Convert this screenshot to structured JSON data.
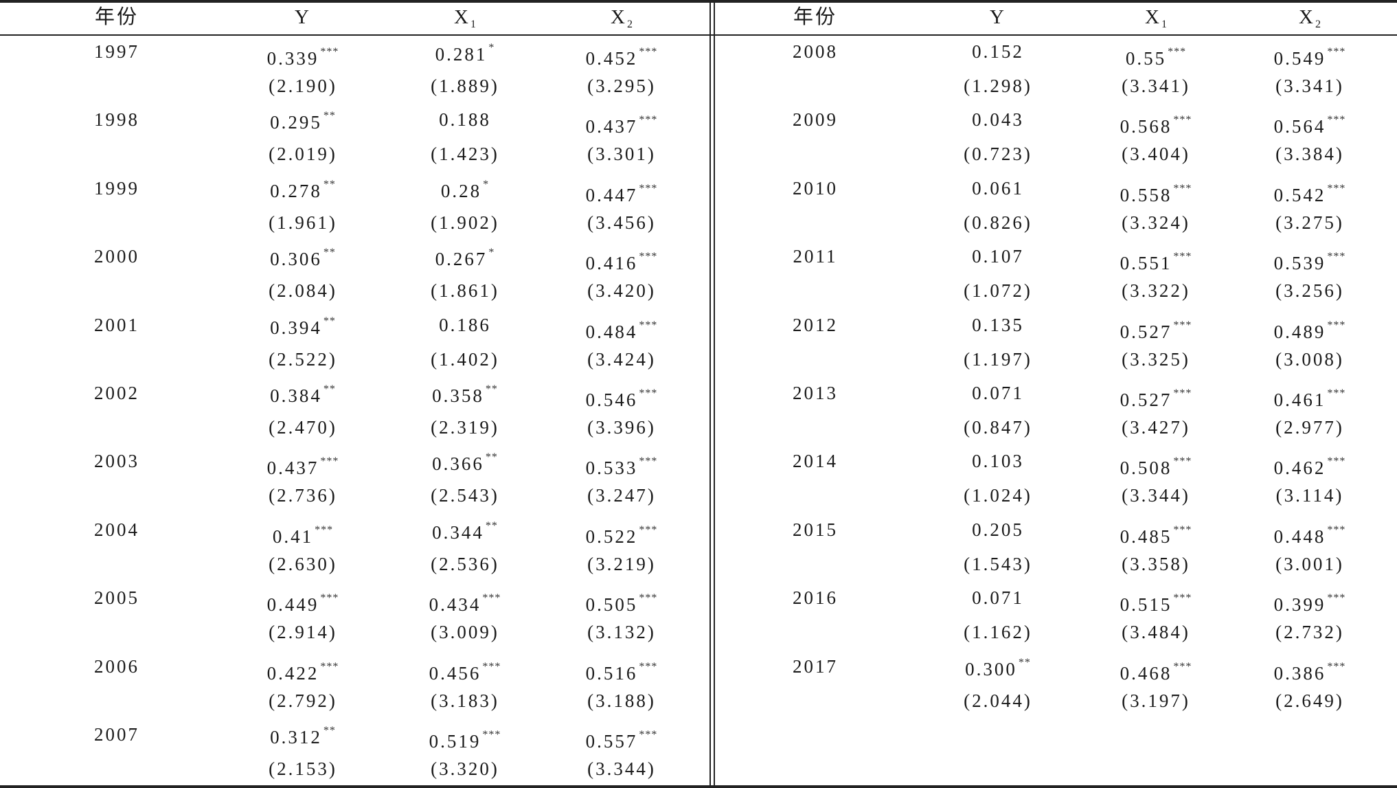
{
  "headers": [
    {
      "label": "年份",
      "sub": ""
    },
    {
      "label": "Y",
      "sub": ""
    },
    {
      "label": "X",
      "sub": "1"
    },
    {
      "label": "X",
      "sub": "2"
    }
  ],
  "left_rows": [
    {
      "year": "1997",
      "Y": {
        "coef": "0.339",
        "stars": "***",
        "t": "(2.190)"
      },
      "X1": {
        "coef": "0.281",
        "stars": "*",
        "t": "(1.889)"
      },
      "X2": {
        "coef": "0.452",
        "stars": "***",
        "t": "(3.295)"
      }
    },
    {
      "year": "1998",
      "Y": {
        "coef": "0.295",
        "stars": "**",
        "t": "(2.019)"
      },
      "X1": {
        "coef": "0.188",
        "stars": "",
        "t": "(1.423)"
      },
      "X2": {
        "coef": "0.437",
        "stars": "***",
        "t": "(3.301)"
      }
    },
    {
      "year": "1999",
      "Y": {
        "coef": "0.278",
        "stars": "**",
        "t": "(1.961)"
      },
      "X1": {
        "coef": "0.28",
        "stars": "*",
        "t": "(1.902)"
      },
      "X2": {
        "coef": "0.447",
        "stars": "***",
        "t": "(3.456)"
      }
    },
    {
      "year": "2000",
      "Y": {
        "coef": "0.306",
        "stars": "**",
        "t": "(2.084)"
      },
      "X1": {
        "coef": "0.267",
        "stars": "*",
        "t": "(1.861)"
      },
      "X2": {
        "coef": "0.416",
        "stars": "***",
        "t": "(3.420)"
      }
    },
    {
      "year": "2001",
      "Y": {
        "coef": "0.394",
        "stars": "**",
        "t": "(2.522)"
      },
      "X1": {
        "coef": "0.186",
        "stars": "",
        "t": "(1.402)"
      },
      "X2": {
        "coef": "0.484",
        "stars": "***",
        "t": "(3.424)"
      }
    },
    {
      "year": "2002",
      "Y": {
        "coef": "0.384",
        "stars": "**",
        "t": "(2.470)"
      },
      "X1": {
        "coef": "0.358",
        "stars": "**",
        "t": "(2.319)"
      },
      "X2": {
        "coef": "0.546",
        "stars": "***",
        "t": "(3.396)"
      }
    },
    {
      "year": "2003",
      "Y": {
        "coef": "0.437",
        "stars": "***",
        "t": "(2.736)"
      },
      "X1": {
        "coef": "0.366",
        "stars": "**",
        "t": "(2.543)"
      },
      "X2": {
        "coef": "0.533",
        "stars": "***",
        "t": "(3.247)"
      }
    },
    {
      "year": "2004",
      "Y": {
        "coef": "0.41",
        "stars": "***",
        "t": "(2.630)"
      },
      "X1": {
        "coef": "0.344",
        "stars": "**",
        "t": "(2.536)"
      },
      "X2": {
        "coef": "0.522",
        "stars": "***",
        "t": "(3.219)"
      }
    },
    {
      "year": "2005",
      "Y": {
        "coef": "0.449",
        "stars": "***",
        "t": "(2.914)"
      },
      "X1": {
        "coef": "0.434",
        "stars": "***",
        "t": "(3.009)"
      },
      "X2": {
        "coef": "0.505",
        "stars": "***",
        "t": "(3.132)"
      }
    },
    {
      "year": "2006",
      "Y": {
        "coef": "0.422",
        "stars": "***",
        "t": "(2.792)"
      },
      "X1": {
        "coef": "0.456",
        "stars": "***",
        "t": "(3.183)"
      },
      "X2": {
        "coef": "0.516",
        "stars": "***",
        "t": "(3.188)"
      }
    },
    {
      "year": "2007",
      "Y": {
        "coef": "0.312",
        "stars": "**",
        "t": "(2.153)"
      },
      "X1": {
        "coef": "0.519",
        "stars": "***",
        "t": "(3.320)"
      },
      "X2": {
        "coef": "0.557",
        "stars": "***",
        "t": "(3.344)"
      }
    }
  ],
  "right_rows": [
    {
      "year": "2008",
      "Y": {
        "coef": "0.152",
        "stars": "",
        "t": "(1.298)"
      },
      "X1": {
        "coef": "0.55",
        "stars": "***",
        "t": "(3.341)"
      },
      "X2": {
        "coef": "0.549",
        "stars": "***",
        "t": "(3.341)"
      }
    },
    {
      "year": "2009",
      "Y": {
        "coef": "0.043",
        "stars": "",
        "t": "(0.723)"
      },
      "X1": {
        "coef": "0.568",
        "stars": "***",
        "t": "(3.404)"
      },
      "X2": {
        "coef": "0.564",
        "stars": "***",
        "t": "(3.384)"
      }
    },
    {
      "year": "2010",
      "Y": {
        "coef": "0.061",
        "stars": "",
        "t": "(0.826)"
      },
      "X1": {
        "coef": "0.558",
        "stars": "***",
        "t": "(3.324)"
      },
      "X2": {
        "coef": "0.542",
        "stars": "***",
        "t": "(3.275)"
      }
    },
    {
      "year": "2011",
      "Y": {
        "coef": "0.107",
        "stars": "",
        "t": "(1.072)"
      },
      "X1": {
        "coef": "0.551",
        "stars": "***",
        "t": "(3.322)"
      },
      "X2": {
        "coef": "0.539",
        "stars": "***",
        "t": "(3.256)"
      }
    },
    {
      "year": "2012",
      "Y": {
        "coef": "0.135",
        "stars": "",
        "t": "(1.197)"
      },
      "X1": {
        "coef": "0.527",
        "stars": "***",
        "t": "(3.325)"
      },
      "X2": {
        "coef": "0.489",
        "stars": "***",
        "t": "(3.008)"
      }
    },
    {
      "year": "2013",
      "Y": {
        "coef": "0.071",
        "stars": "",
        "t": "(0.847)"
      },
      "X1": {
        "coef": "0.527",
        "stars": "***",
        "t": "(3.427)"
      },
      "X2": {
        "coef": "0.461",
        "stars": "***",
        "t": "(2.977)"
      }
    },
    {
      "year": "2014",
      "Y": {
        "coef": "0.103",
        "stars": "",
        "t": "(1.024)"
      },
      "X1": {
        "coef": "0.508",
        "stars": "***",
        "t": "(3.344)"
      },
      "X2": {
        "coef": "0.462",
        "stars": "***",
        "t": "(3.114)"
      }
    },
    {
      "year": "2015",
      "Y": {
        "coef": "0.205",
        "stars": "",
        "t": "(1.543)"
      },
      "X1": {
        "coef": "0.485",
        "stars": "***",
        "t": "(3.358)"
      },
      "X2": {
        "coef": "0.448",
        "stars": "***",
        "t": "(3.001)"
      }
    },
    {
      "year": "2016",
      "Y": {
        "coef": "0.071",
        "stars": "",
        "t": "(1.162)"
      },
      "X1": {
        "coef": "0.515",
        "stars": "***",
        "t": "(3.484)"
      },
      "X2": {
        "coef": "0.399",
        "stars": "***",
        "t": "(2.732)"
      }
    },
    {
      "year": "2017",
      "Y": {
        "coef": "0.300",
        "stars": "**",
        "t": "(2.044)"
      },
      "X1": {
        "coef": "0.468",
        "stars": "***",
        "t": "(3.197)"
      },
      "X2": {
        "coef": "0.386",
        "stars": "***",
        "t": "(2.649)"
      }
    }
  ]
}
